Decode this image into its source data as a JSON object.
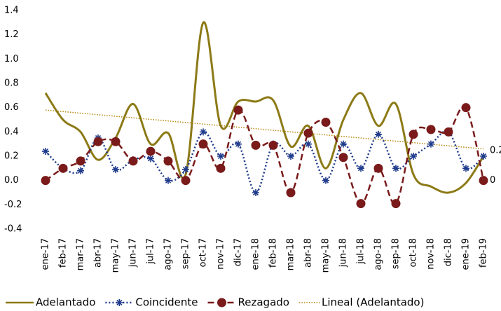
{
  "chart_data": {
    "type": "line",
    "categories": [
      "ene-17",
      "feb-17",
      "mar-17",
      "abr-17",
      "may-17",
      "jun-17",
      "jul-17",
      "ago-17",
      "sep-17",
      "oct-17",
      "nov-17",
      "dic-17",
      "ene-18",
      "feb-18",
      "mar-18",
      "abr-18",
      "may-18",
      "jun-18",
      "jul-18",
      "ago-18",
      "sep-18",
      "oct-18",
      "nov-18",
      "dic-18",
      "ene-19",
      "feb-19"
    ],
    "series": [
      {
        "name": "Adelantado",
        "color": "#8c7a16",
        "style": "solid",
        "marker": "none",
        "values": [
          0.72,
          0.5,
          0.4,
          0.17,
          0.35,
          0.63,
          0.3,
          0.39,
          0.05,
          1.3,
          0.45,
          0.65,
          0.65,
          0.66,
          0.28,
          0.45,
          0.1,
          0.5,
          0.72,
          0.45,
          0.63,
          0.05,
          -0.05,
          -0.1,
          -0.02,
          0.2
        ]
      },
      {
        "name": "Coincidente",
        "color": "#1f3b8c",
        "style": "dotted",
        "marker": "star",
        "values": [
          0.24,
          0.1,
          0.08,
          0.35,
          0.09,
          0.17,
          0.18,
          0.0,
          0.09,
          0.4,
          0.2,
          0.3,
          -0.1,
          0.3,
          0.2,
          0.3,
          0.0,
          0.3,
          0.1,
          0.38,
          0.1,
          0.2,
          0.3,
          0.4,
          0.1,
          0.2
        ]
      },
      {
        "name": "Rezagado",
        "color": "#7a1a1a",
        "style": "dashed",
        "marker": "circle",
        "values": [
          0,
          0.1,
          0.16,
          0.32,
          0.32,
          0.16,
          0.24,
          0.16,
          0.0,
          0.3,
          0.1,
          0.58,
          0.29,
          0.29,
          -0.1,
          0.39,
          0.48,
          0.19,
          -0.19,
          0.1,
          -0.19,
          0.38,
          0.42,
          0.4,
          0.6,
          0
        ]
      }
    ],
    "trendline": {
      "name": "Lineal (Adelantado)",
      "color": "#b8860b",
      "values": [
        0.58,
        0.26
      ]
    },
    "data_labels": [
      {
        "series": 0,
        "index": 25,
        "label": "0.2"
      },
      {
        "series": 2,
        "index": 25,
        "label": "0"
      }
    ],
    "ylim": [
      -0.4,
      1.4
    ],
    "yticks": [
      -0.4,
      -0.2,
      {
        "value": 0,
        "label": "0.0"
      },
      0.2,
      0.4,
      0.6,
      0.8,
      {
        "value": 1,
        "label": "1.0"
      },
      1.2,
      1.4
    ],
    "grid": false,
    "legend": "bottom"
  }
}
